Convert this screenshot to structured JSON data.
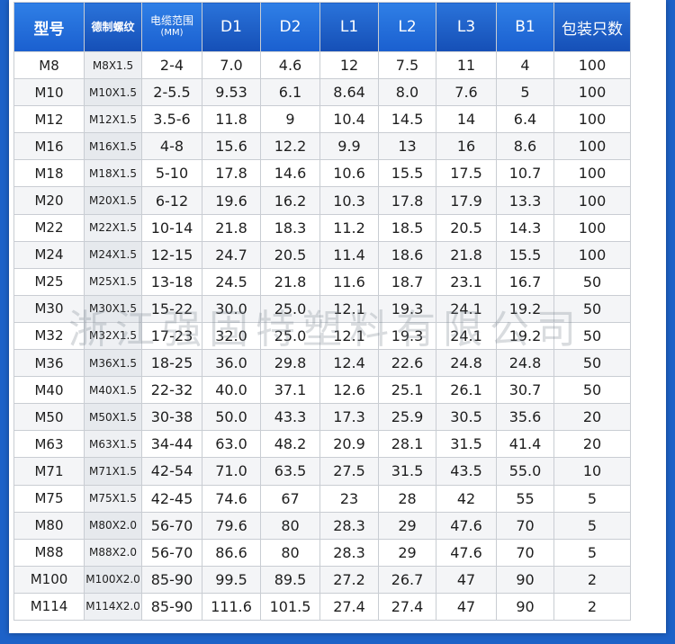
{
  "headers": [
    "型号",
    "德制螺纹",
    "电缆范围",
    "(MM)",
    "D1",
    "D2",
    "L1",
    "L2",
    "L3",
    "B1",
    "包装只数"
  ],
  "rows": [
    [
      "M8",
      "M8X1.5",
      "2-4",
      "7.0",
      "4.6",
      "12",
      "7.5",
      "11",
      "4",
      "100"
    ],
    [
      "M10",
      "M10X1.5",
      "2-5.5",
      "9.53",
      "6.1",
      "8.64",
      "8.0",
      "7.6",
      "5",
      "100"
    ],
    [
      "M12",
      "M12X1.5",
      "3.5-6",
      "11.8",
      "9",
      "10.4",
      "14.5",
      "14",
      "6.4",
      "100"
    ],
    [
      "M16",
      "M16X1.5",
      "4-8",
      "15.6",
      "12.2",
      "9.9",
      "13",
      "16",
      "8.6",
      "100"
    ],
    [
      "M18",
      "M18X1.5",
      "5-10",
      "17.8",
      "14.6",
      "10.6",
      "15.5",
      "17.5",
      "10.7",
      "100"
    ],
    [
      "M20",
      "M20X1.5",
      "6-12",
      "19.6",
      "16.2",
      "10.3",
      "17.8",
      "17.9",
      "13.3",
      "100"
    ],
    [
      "M22",
      "M22X1.5",
      "10-14",
      "21.8",
      "18.3",
      "11.2",
      "18.5",
      "20.5",
      "14.3",
      "100"
    ],
    [
      "M24",
      "M24X1.5",
      "12-15",
      "24.7",
      "20.5",
      "11.4",
      "18.6",
      "21.8",
      "15.5",
      "100"
    ],
    [
      "M25",
      "M25X1.5",
      "13-18",
      "24.5",
      "21.8",
      "11.6",
      "18.7",
      "23.1",
      "16.7",
      "50"
    ],
    [
      "M30",
      "M30X1.5",
      "15-22",
      "30.0",
      "25.0",
      "12.1",
      "19.3",
      "24.1",
      "19.2",
      "50"
    ],
    [
      "M32",
      "M32X1.5",
      "17-23",
      "32.0",
      "25.0",
      "12.1",
      "19.3",
      "24.1",
      "19.2",
      "50"
    ],
    [
      "M36",
      "M36X1.5",
      "18-25",
      "36.0",
      "29.8",
      "12.4",
      "22.6",
      "24.8",
      "24.8",
      "50"
    ],
    [
      "M40",
      "M40X1.5",
      "22-32",
      "40.0",
      "37.1",
      "12.6",
      "25.1",
      "26.1",
      "30.7",
      "50"
    ],
    [
      "M50",
      "M50X1.5",
      "30-38",
      "50.0",
      "43.3",
      "17.3",
      "25.9",
      "30.5",
      "35.6",
      "20"
    ],
    [
      "M63",
      "M63X1.5",
      "34-44",
      "63.0",
      "48.2",
      "20.9",
      "28.1",
      "31.5",
      "41.4",
      "20"
    ],
    [
      "M71",
      "M71X1.5",
      "42-54",
      "71.0",
      "63.5",
      "27.5",
      "31.5",
      "43.5",
      "55.0",
      "10"
    ],
    [
      "M75",
      "M75X1.5",
      "42-45",
      "74.6",
      "67",
      "23",
      "28",
      "42",
      "55",
      "5"
    ],
    [
      "M80",
      "M80X2.0",
      "56-70",
      "79.6",
      "80",
      "28.3",
      "29",
      "47.6",
      "70",
      "5"
    ],
    [
      "M88",
      "M88X2.0",
      "56-70",
      "86.6",
      "80",
      "28.3",
      "29",
      "47.6",
      "70",
      "5"
    ],
    [
      "M100",
      "M100X2.0",
      "85-90",
      "99.5",
      "89.5",
      "27.2",
      "26.7",
      "47",
      "90",
      "2"
    ],
    [
      "M114",
      "M114X2.0",
      "85-90",
      "111.6",
      "101.5",
      "27.4",
      "27.4",
      "47",
      "90",
      "2"
    ]
  ],
  "watermark": "浙江强固特塑料有限公司",
  "colors": {
    "header_blue": "#1d62c8",
    "border": "#c9cdd3"
  }
}
